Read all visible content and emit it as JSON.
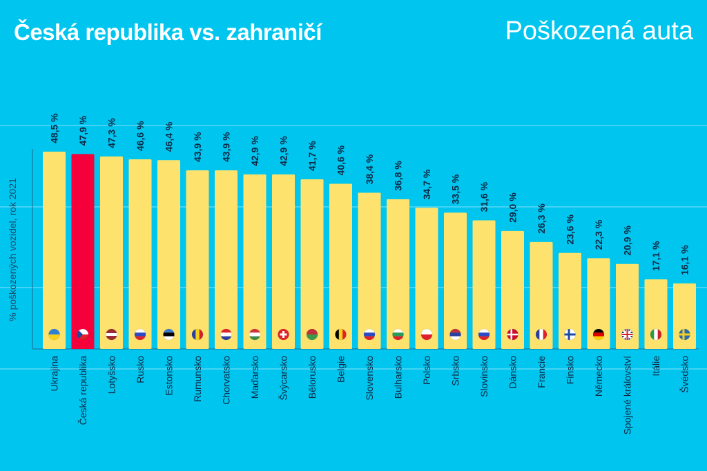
{
  "header": {
    "title": "Česká republika vs. zahraničí",
    "subtitle": "Poškozená auta"
  },
  "chart_data": {
    "type": "bar",
    "title": "Česká republika vs. zahraničí",
    "subtitle": "Poškozená auta",
    "xlabel": "",
    "ylabel": "% poškozených vozidel, rok 2021",
    "ylim": [
      0,
      50
    ],
    "grid": true,
    "highlight": "Česká republika",
    "colors": {
      "background": "#00c5ef",
      "bar": "#fde36e",
      "highlight": "#f5003a",
      "text": "#0d2a45",
      "grid": "#5ad8f5"
    },
    "categories": [
      "Ukrajina",
      "Česká republika",
      "Lotyšsko",
      "Rusko",
      "Estonsko",
      "Rumunsko",
      "Chorvatsko",
      "Maďarsko",
      "Švýcarsko",
      "Bělorusko",
      "Belgie",
      "Slovensko",
      "Bulharsko",
      "Polsko",
      "Srbsko",
      "Slovinsko",
      "Dánsko",
      "Francie",
      "Finsko",
      "Německo",
      "Spojené království",
      "Itálie",
      "Švédsko"
    ],
    "values": [
      48.5,
      47.9,
      47.3,
      46.6,
      46.4,
      43.9,
      43.9,
      42.9,
      42.9,
      41.7,
      40.6,
      38.4,
      36.8,
      34.7,
      33.5,
      31.6,
      29.0,
      26.3,
      23.6,
      22.3,
      20.9,
      17.1,
      16.1
    ],
    "value_labels": [
      "48,5 %",
      "47,9 %",
      "47,3 %",
      "46,6 %",
      "46,4 %",
      "43,9 %",
      "43,9 %",
      "42,9 %",
      "42,9 %",
      "41,7 %",
      "40,6 %",
      "38,4 %",
      "36,8 %",
      "34,7 %",
      "33,5 %",
      "31,6 %",
      "29,0 %",
      "26,3 %",
      "23,6 %",
      "22,3 %",
      "20,9 %",
      "17,1 %",
      "16,1 %"
    ],
    "flags": [
      [
        "#2f7fd8",
        "#f7d21c",
        "h"
      ],
      [
        "#ffffff",
        "#e0202a",
        "cz"
      ],
      [
        "#9e2b34",
        "#ffffff",
        "lv"
      ],
      [
        "#ffffff",
        "#2a4bc4",
        "#e0202a"
      ],
      [
        "#3a7ad0",
        "#000000",
        "#ffffff"
      ],
      [
        "#2a3fa0",
        "#f7d21c",
        "#d0202a",
        "v"
      ],
      [
        "#e0202a",
        "#ffffff",
        "#2a3fa0"
      ],
      [
        "#d0303a",
        "#ffffff",
        "#3a8a4a"
      ],
      [
        "#e0202a",
        "ch"
      ],
      [
        "#c0303a",
        "#3a9a4a",
        "h2"
      ],
      [
        "#000000",
        "#f7d21c",
        "#e0202a",
        "v"
      ],
      [
        "#ffffff",
        "#2a4bc4",
        "#e0202a"
      ],
      [
        "#ffffff",
        "#2a9a5a",
        "#e0202a"
      ],
      [
        "#ffffff",
        "#e0202a",
        "h2"
      ],
      [
        "#c0303a",
        "#2a3fa0",
        "#ffffff"
      ],
      [
        "#ffffff",
        "#2a4bc4",
        "#e0202a"
      ],
      [
        "#c8102e",
        "dk"
      ],
      [
        "#2a3fa0",
        "#ffffff",
        "#e0202a",
        "v"
      ],
      [
        "#ffffff",
        "fi"
      ],
      [
        "#000000",
        "#dd0000",
        "#ffce00"
      ],
      [
        "#1a2a8a",
        "uk"
      ],
      [
        "#2a9a4a",
        "#ffffff",
        "#d0202a",
        "v"
      ],
      [
        "#2a6ab0",
        "se"
      ]
    ]
  }
}
